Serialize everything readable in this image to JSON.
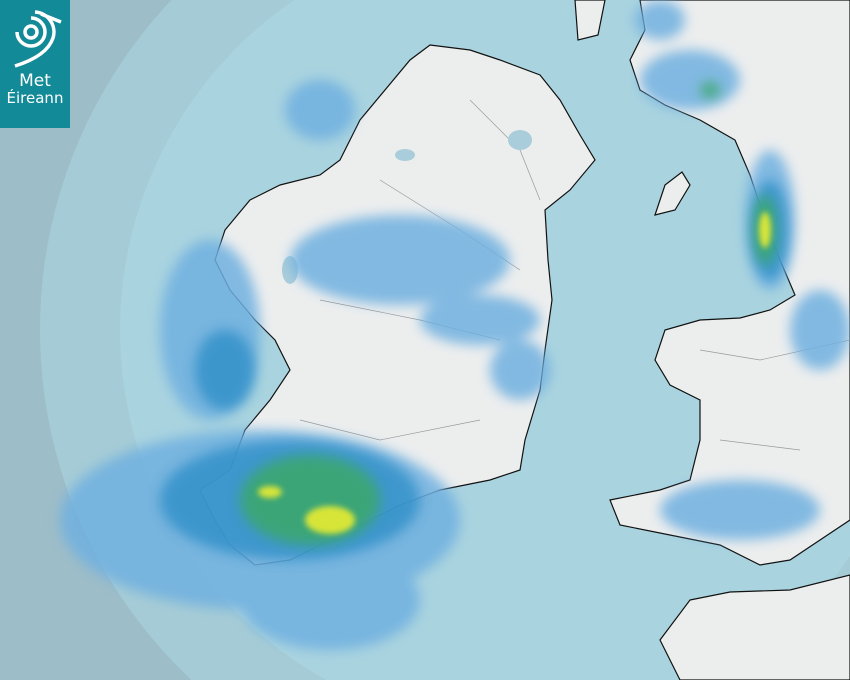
{
  "logo": {
    "line1": "Met",
    "line2": "Éireann"
  },
  "map": {
    "type": "rainfall-radar",
    "colors": {
      "outside_range": "#9dbdc8",
      "sea": "#a8d2de",
      "land": "#eceeee",
      "light_rain": "#6fb0e0",
      "moderate_rain": "#2f8fc8",
      "heavier_rain": "#3aa86a",
      "heavy_rain": "#e8ec30"
    }
  }
}
